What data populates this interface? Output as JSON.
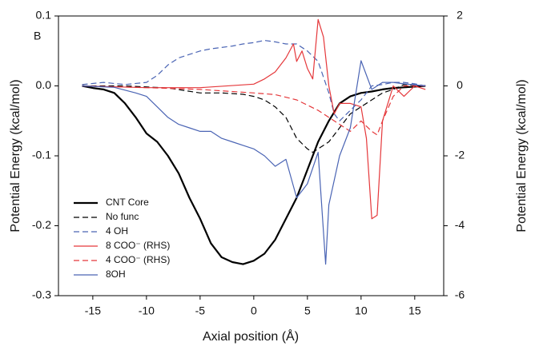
{
  "chart_data": {
    "type": "line",
    "panel_label": "B",
    "xlabel": "Axial position (Å)",
    "ylabel": "Potential Energy (kcal/mol)",
    "y2label": "Potential Energy (kcal/mol)",
    "xlim": [
      -18.2,
      17.7
    ],
    "xticks": [
      -15,
      -10,
      -5,
      0,
      5,
      10,
      15
    ],
    "ylim": [
      -0.3,
      0.1
    ],
    "yticks": [
      0.1,
      {
        "value": 0,
        "label": "0.0"
      },
      -0.1,
      -0.2,
      -0.3
    ],
    "y2lim": [
      -6,
      2
    ],
    "y2ticks": [
      2,
      0,
      -2,
      -4,
      -6
    ],
    "legend": "lower left",
    "series": [
      {
        "name": "CNT Core",
        "color": "#000000",
        "dash": false,
        "width": 2.2,
        "x": [
          -16,
          -15,
          -14,
          -13,
          -12,
          -11,
          -10,
          -9,
          -8,
          -7,
          -6,
          -5,
          -4,
          -3,
          -2,
          -1,
          0,
          1,
          2,
          3,
          4,
          5,
          6,
          7,
          8,
          9,
          10,
          11,
          12,
          13,
          14,
          15,
          16
        ],
        "values": [
          0,
          -0.003,
          -0.005,
          -0.01,
          -0.025,
          -0.045,
          -0.068,
          -0.08,
          -0.1,
          -0.125,
          -0.16,
          -0.19,
          -0.225,
          -0.245,
          -0.252,
          -0.255,
          -0.25,
          -0.24,
          -0.22,
          -0.19,
          -0.16,
          -0.12,
          -0.08,
          -0.05,
          -0.025,
          -0.015,
          -0.01,
          -0.008,
          -0.005,
          -0.003,
          -0.002,
          -0.001,
          0
        ]
      },
      {
        "name": "No func",
        "color": "#000000",
        "dash": true,
        "width": 1.2,
        "x": [
          -16,
          -12,
          -8,
          -5,
          -3,
          -1,
          0,
          1,
          2,
          3,
          4,
          5,
          5.5,
          6,
          7,
          8,
          9,
          10,
          11,
          12,
          13,
          14,
          15,
          16
        ],
        "values": [
          0,
          0,
          -0.003,
          -0.01,
          -0.01,
          -0.012,
          -0.015,
          -0.02,
          -0.03,
          -0.045,
          -0.075,
          -0.09,
          -0.095,
          -0.09,
          -0.08,
          -0.06,
          -0.04,
          -0.03,
          -0.02,
          -0.01,
          -0.005,
          0.002,
          0.001,
          0
        ]
      },
      {
        "name": "4 OH",
        "color": "#4a64b4",
        "dash": true,
        "width": 1.2,
        "x": [
          -16,
          -14,
          -12,
          -10,
          -9,
          -8,
          -7,
          -6,
          -5,
          -4,
          -3,
          -2,
          -1,
          0,
          1,
          2,
          3,
          4,
          5,
          6,
          7,
          7.5,
          8,
          9,
          10,
          11,
          12,
          13,
          14,
          15,
          16
        ],
        "values": [
          0.002,
          0.005,
          0.002,
          0.005,
          0.015,
          0.03,
          0.04,
          0.045,
          0.05,
          0.053,
          0.055,
          0.057,
          0.06,
          0.062,
          0.065,
          0.063,
          0.06,
          0.06,
          0.05,
          0.035,
          -0.01,
          -0.04,
          -0.05,
          -0.035,
          -0.02,
          0,
          0.002,
          0.005,
          0.005,
          0.003,
          0
        ]
      },
      {
        "name": "8 COO⁻ (RHS)",
        "color": "#e5383b",
        "dash": false,
        "width": 1.2,
        "axis": "y2",
        "x": [
          -16,
          -10,
          -5,
          0,
          1,
          2,
          3,
          3.7,
          4,
          4.5,
          5,
          5.5,
          6,
          6.5,
          7,
          7.5,
          8,
          9,
          10,
          10.5,
          11,
          11.5,
          12,
          13,
          14,
          15,
          16
        ],
        "values": [
          0,
          -0.05,
          -0.05,
          0.05,
          0.2,
          0.4,
          0.8,
          1.2,
          0.7,
          1.0,
          0.5,
          0.2,
          1.9,
          1.4,
          0,
          -0.8,
          -0.5,
          -0.5,
          -0.6,
          -1.5,
          -3.8,
          -3.7,
          -1.0,
          0,
          -0.3,
          0,
          -0.1
        ]
      },
      {
        "name": "4 COO⁻ (RHS)",
        "color": "#e5383b",
        "dash": true,
        "width": 1.2,
        "axis": "y2",
        "x": [
          -16,
          -10,
          -5,
          0,
          2,
          4,
          6,
          8,
          9,
          10,
          11,
          11.5,
          12,
          13,
          14,
          16
        ],
        "values": [
          0,
          -0.05,
          -0.1,
          -0.2,
          -0.25,
          -0.4,
          -0.7,
          -1.1,
          -1.3,
          -1.0,
          -1.3,
          -1.4,
          -1.0,
          -0.3,
          0,
          0
        ]
      },
      {
        "name": "8OH",
        "color": "#4a64b4",
        "dash": false,
        "width": 1.2,
        "x": [
          -16,
          -13,
          -11,
          -10,
          -9,
          -8,
          -7,
          -6,
          -5,
          -4,
          -3,
          -2,
          -1,
          0,
          1,
          2,
          3,
          4,
          5,
          6,
          6.7,
          7,
          8,
          9,
          10,
          11,
          12,
          13,
          14,
          16
        ],
        "values": [
          0,
          -0.002,
          -0.01,
          -0.015,
          -0.03,
          -0.045,
          -0.055,
          -0.06,
          -0.065,
          -0.065,
          -0.075,
          -0.08,
          -0.085,
          -0.09,
          -0.1,
          -0.115,
          -0.105,
          -0.16,
          -0.14,
          -0.095,
          -0.255,
          -0.17,
          -0.1,
          -0.06,
          0.036,
          -0.005,
          0.005,
          0.005,
          0.003,
          0
        ]
      }
    ]
  }
}
